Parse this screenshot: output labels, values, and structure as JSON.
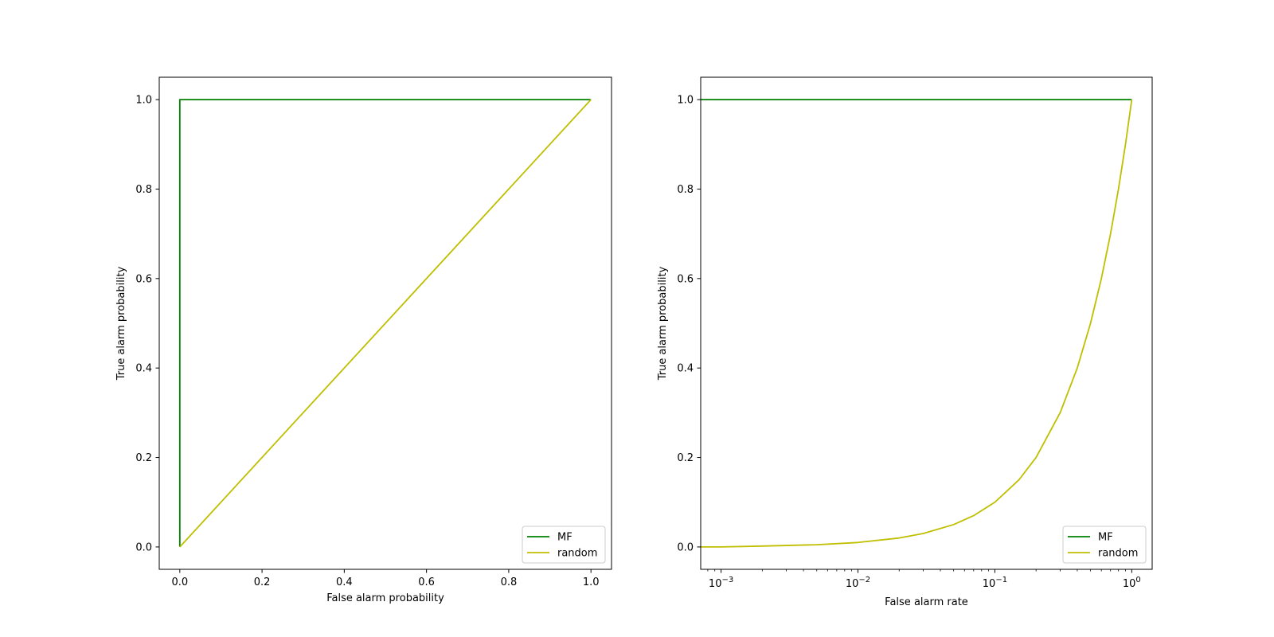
{
  "chart_data": [
    {
      "type": "line",
      "title": "",
      "xlabel": "False alarm probability",
      "ylabel": "True alarm probability",
      "xscale": "linear",
      "xlim": [
        -0.05,
        1.05
      ],
      "ylim": [
        -0.05,
        1.05
      ],
      "xticks": [
        0.0,
        0.2,
        0.4,
        0.6,
        0.8,
        1.0
      ],
      "xtick_labels": [
        "0.0",
        "0.2",
        "0.4",
        "0.6",
        "0.8",
        "1.0"
      ],
      "yticks": [
        0.0,
        0.2,
        0.4,
        0.6,
        0.8,
        1.0
      ],
      "ytick_labels": [
        "0.0",
        "0.2",
        "0.4",
        "0.6",
        "0.8",
        "1.0"
      ],
      "grid": false,
      "legend": "lower right",
      "series": [
        {
          "name": "MF",
          "color": "#008000",
          "x": [
            0.0,
            0.0,
            1.0
          ],
          "y": [
            0.0,
            1.0,
            1.0
          ]
        },
        {
          "name": "random",
          "color": "#bfbf00",
          "x": [
            0.0,
            1.0
          ],
          "y": [
            0.0,
            1.0
          ]
        }
      ]
    },
    {
      "type": "line",
      "title": "",
      "xlabel": "False alarm rate",
      "ylabel": "True alarm probability",
      "xscale": "log",
      "xlim": [
        0.00071,
        1.41
      ],
      "ylim": [
        -0.05,
        1.05
      ],
      "xticks": [
        0.001,
        0.01,
        0.1,
        1
      ],
      "xtick_labels": [
        [
          "10",
          "−3"
        ],
        [
          "10",
          "−2"
        ],
        [
          "10",
          "−1"
        ],
        [
          "10",
          "0"
        ]
      ],
      "yticks": [
        0.0,
        0.2,
        0.4,
        0.6,
        0.8,
        1.0
      ],
      "ytick_labels": [
        "0.0",
        "0.2",
        "0.4",
        "0.6",
        "0.8",
        "1.0"
      ],
      "grid": false,
      "legend": "lower right",
      "series": [
        {
          "name": "MF",
          "color": "#008000",
          "x": [
            0.00071,
            1.0
          ],
          "y": [
            1.0,
            1.0
          ]
        },
        {
          "name": "random",
          "color": "#bfbf00",
          "x": [
            0.00071,
            0.001,
            0.002,
            0.005,
            0.01,
            0.02,
            0.03,
            0.05,
            0.07,
            0.1,
            0.15,
            0.2,
            0.3,
            0.4,
            0.5,
            0.6,
            0.7,
            0.8,
            0.9,
            1.0
          ],
          "y": [
            0.0,
            0.0,
            0.002,
            0.005,
            0.01,
            0.02,
            0.03,
            0.05,
            0.07,
            0.1,
            0.15,
            0.2,
            0.3,
            0.4,
            0.5,
            0.6,
            0.7,
            0.8,
            0.9,
            1.0
          ]
        }
      ]
    }
  ]
}
